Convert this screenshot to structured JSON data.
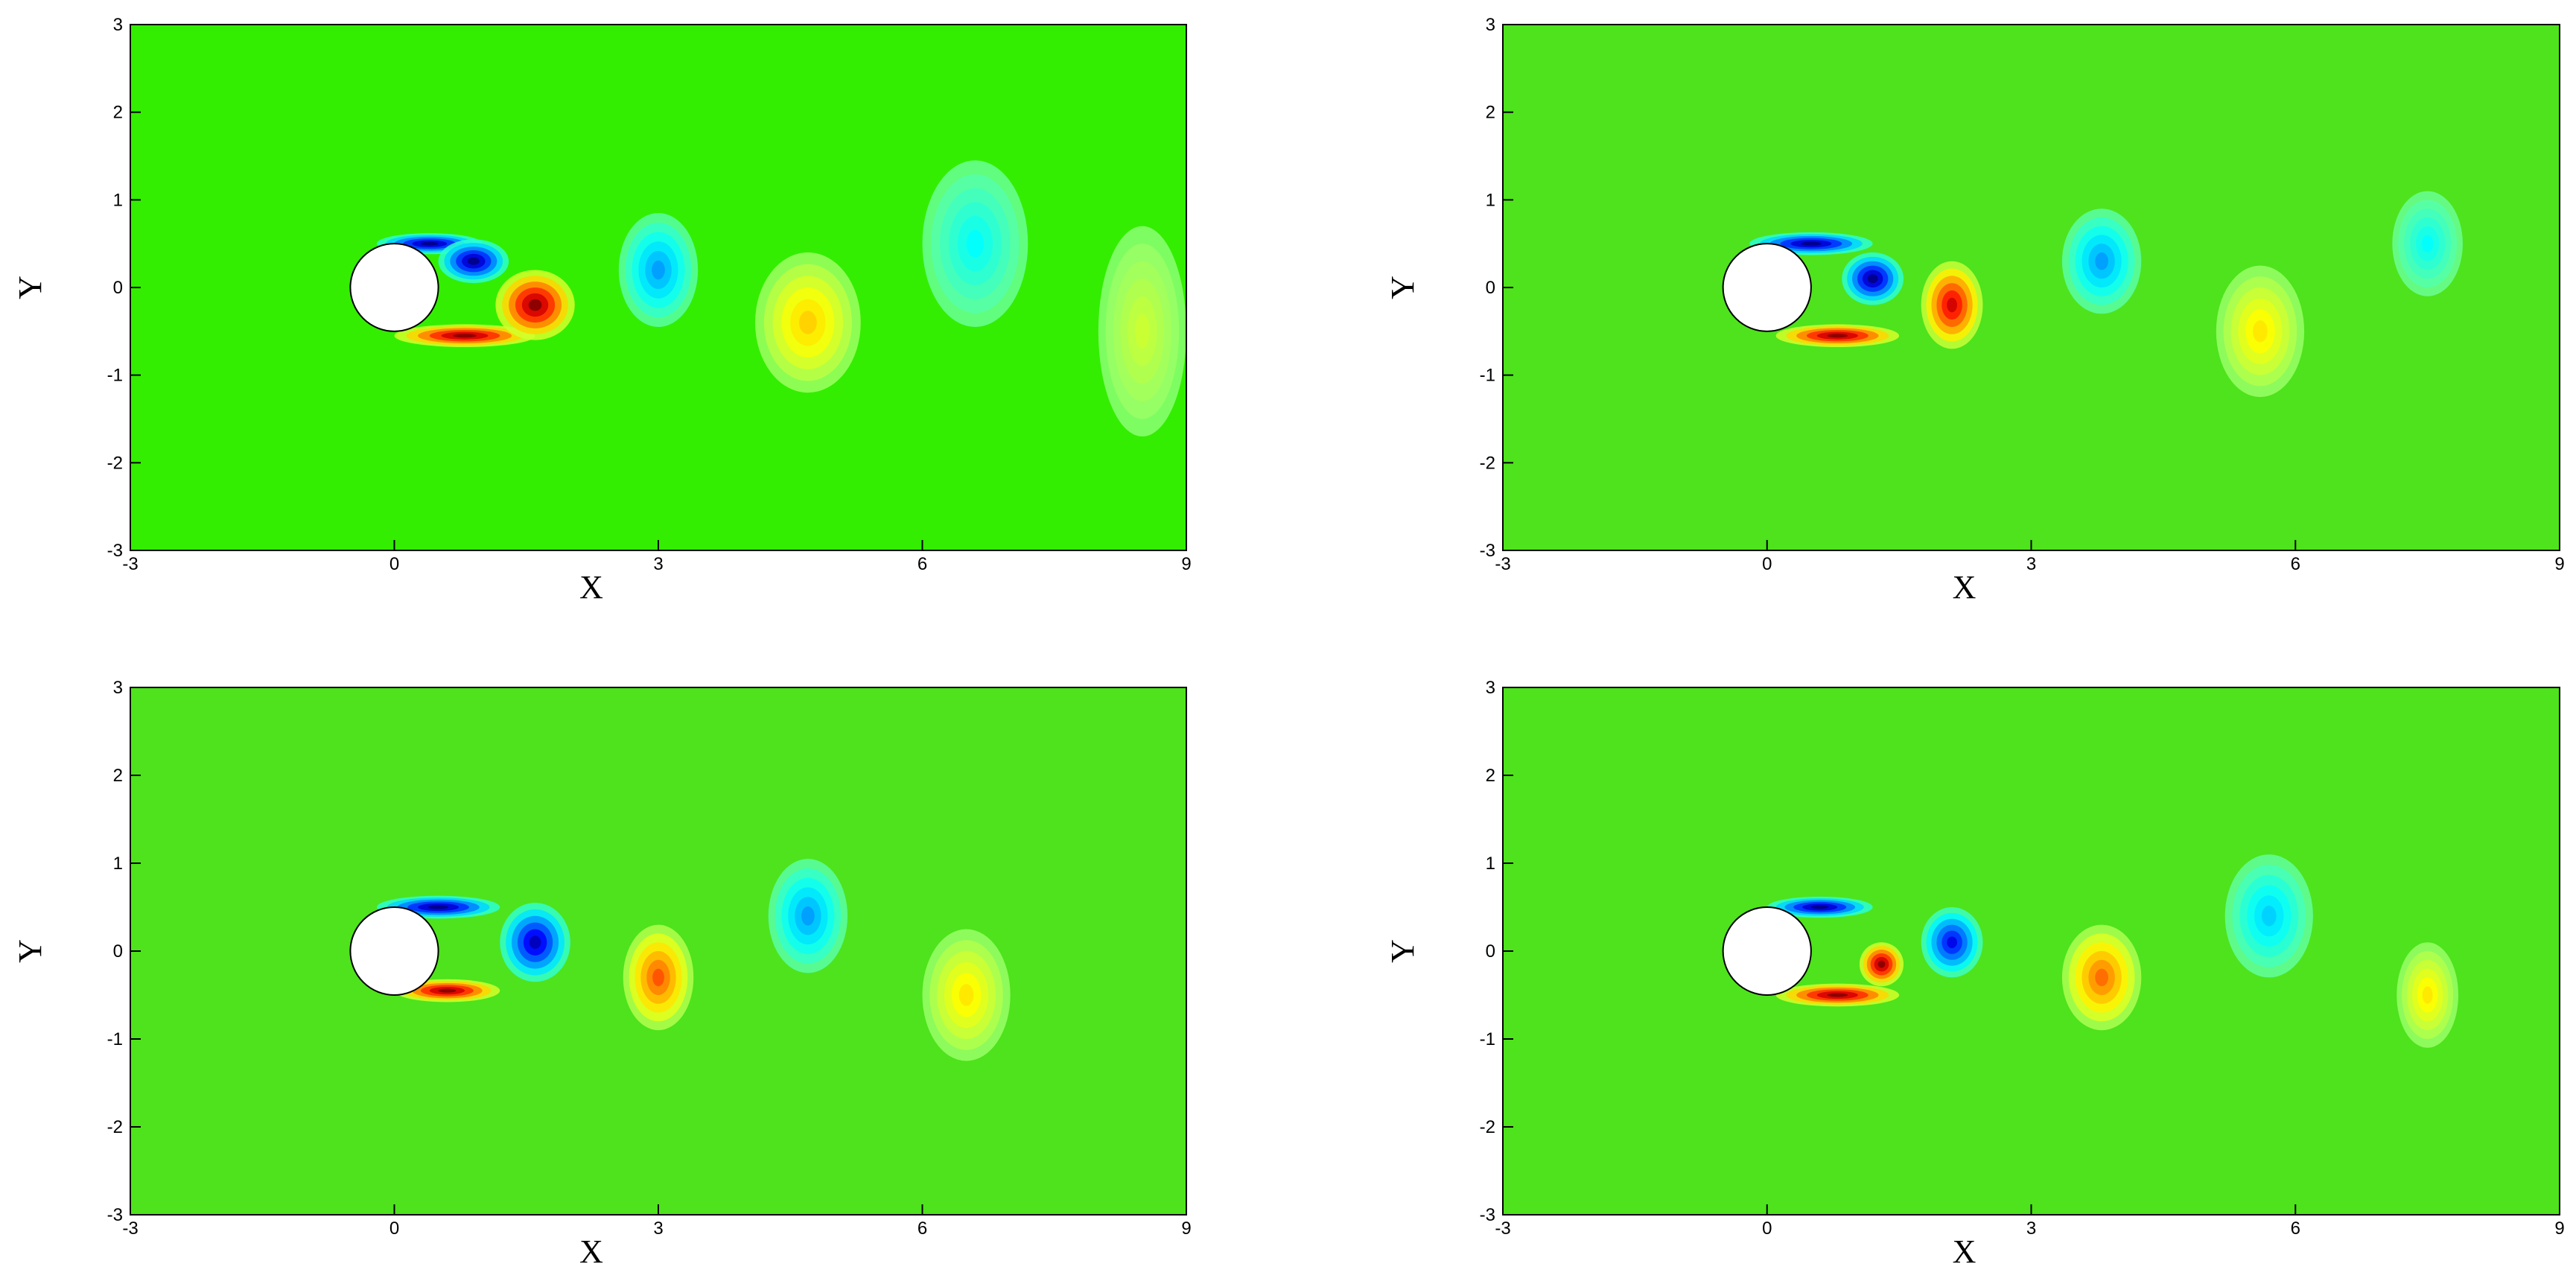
{
  "chart_data": [
    {
      "type": "contour",
      "xlabel": "X",
      "ylabel": "Y",
      "xlim": [
        -3,
        9
      ],
      "ylim": [
        -3,
        3
      ],
      "xticks": [
        -3,
        0,
        3,
        6,
        9
      ],
      "yticks": [
        -3,
        -2,
        -1,
        0,
        1,
        2,
        3
      ],
      "background": "#33ee00",
      "cylinder": {
        "x": 0,
        "y": 0,
        "radius": 0.5
      },
      "vortices": [
        {
          "x": 0.4,
          "y": 0.5,
          "rx": 0.6,
          "ry": 0.12,
          "strength": -1
        },
        {
          "x": 0.9,
          "y": 0.3,
          "rx": 0.4,
          "ry": 0.25,
          "strength": -1
        },
        {
          "x": 0.8,
          "y": -0.55,
          "rx": 0.8,
          "ry": 0.13,
          "strength": 1
        },
        {
          "x": 1.6,
          "y": -0.2,
          "rx": 0.45,
          "ry": 0.4,
          "strength": 1
        },
        {
          "x": 3,
          "y": 0.2,
          "rx": 0.45,
          "ry": 0.65,
          "strength": -0.45
        },
        {
          "x": 4.7,
          "y": -0.4,
          "rx": 0.6,
          "ry": 0.8,
          "strength": 0.35
        },
        {
          "x": 6.6,
          "y": 0.5,
          "rx": 0.6,
          "ry": 0.95,
          "strength": -0.25
        },
        {
          "x": 8.5,
          "y": -0.5,
          "rx": 0.5,
          "ry": 1.2,
          "strength": 0.15
        }
      ]
    },
    {
      "type": "contour",
      "xlabel": "X",
      "ylabel": "Y",
      "xlim": [
        -3,
        9
      ],
      "ylim": [
        -3,
        3
      ],
      "xticks": [
        -3,
        0,
        3,
        6,
        9
      ],
      "yticks": [
        -3,
        -2,
        -1,
        0,
        1,
        2,
        3
      ],
      "background": "#4ee31c",
      "cylinder": {
        "x": 0,
        "y": 0,
        "radius": 0.5
      },
      "vortices": [
        {
          "x": 0.5,
          "y": 0.5,
          "rx": 0.7,
          "ry": 0.13,
          "strength": -1
        },
        {
          "x": 1.2,
          "y": 0.1,
          "rx": 0.35,
          "ry": 0.3,
          "strength": -1
        },
        {
          "x": 0.8,
          "y": -0.55,
          "rx": 0.7,
          "ry": 0.13,
          "strength": 1
        },
        {
          "x": 2.1,
          "y": -0.2,
          "rx": 0.35,
          "ry": 0.5,
          "strength": 0.85
        },
        {
          "x": 3.8,
          "y": 0.3,
          "rx": 0.45,
          "ry": 0.6,
          "strength": -0.45
        },
        {
          "x": 5.6,
          "y": -0.5,
          "rx": 0.5,
          "ry": 0.75,
          "strength": 0.3
        },
        {
          "x": 7.5,
          "y": 0.5,
          "rx": 0.4,
          "ry": 0.6,
          "strength": -0.25
        }
      ]
    },
    {
      "type": "contour",
      "xlabel": "X",
      "ylabel": "Y",
      "xlim": [
        -3,
        9
      ],
      "ylim": [
        -3,
        3
      ],
      "xticks": [
        -3,
        0,
        3,
        6,
        9
      ],
      "yticks": [
        -3,
        -2,
        -1,
        0,
        1,
        2,
        3
      ],
      "background": "#4ee31c",
      "cylinder": {
        "x": 0,
        "y": 0,
        "radius": 0.5
      },
      "vortices": [
        {
          "x": 0.5,
          "y": 0.5,
          "rx": 0.7,
          "ry": 0.13,
          "strength": -1
        },
        {
          "x": 1.6,
          "y": 0.1,
          "rx": 0.4,
          "ry": 0.45,
          "strength": -0.9
        },
        {
          "x": 0.6,
          "y": -0.45,
          "rx": 0.6,
          "ry": 0.13,
          "strength": 1
        },
        {
          "x": 3,
          "y": -0.3,
          "rx": 0.4,
          "ry": 0.6,
          "strength": 0.6
        },
        {
          "x": 4.7,
          "y": 0.4,
          "rx": 0.45,
          "ry": 0.65,
          "strength": -0.45
        },
        {
          "x": 6.5,
          "y": -0.5,
          "rx": 0.5,
          "ry": 0.75,
          "strength": 0.3
        }
      ]
    },
    {
      "type": "contour",
      "xlabel": "X",
      "ylabel": "Y",
      "xlim": [
        -3,
        9
      ],
      "ylim": [
        -3,
        3
      ],
      "xticks": [
        -3,
        0,
        3,
        6,
        9
      ],
      "yticks": [
        -3,
        -2,
        -1,
        0,
        1,
        2,
        3
      ],
      "background": "#4ee31c",
      "cylinder": {
        "x": 0,
        "y": 0,
        "radius": 0.5
      },
      "vortices": [
        {
          "x": 0.6,
          "y": 0.5,
          "rx": 0.6,
          "ry": 0.12,
          "strength": -1
        },
        {
          "x": 2.1,
          "y": 0.1,
          "rx": 0.35,
          "ry": 0.4,
          "strength": -0.8
        },
        {
          "x": 0.8,
          "y": -0.5,
          "rx": 0.7,
          "ry": 0.13,
          "strength": 1
        },
        {
          "x": 1.3,
          "y": -0.15,
          "rx": 0.25,
          "ry": 0.25,
          "strength": 1
        },
        {
          "x": 3.8,
          "y": -0.3,
          "rx": 0.45,
          "ry": 0.6,
          "strength": 0.55
        },
        {
          "x": 5.7,
          "y": 0.4,
          "rx": 0.5,
          "ry": 0.7,
          "strength": -0.35
        },
        {
          "x": 7.5,
          "y": -0.5,
          "rx": 0.35,
          "ry": 0.6,
          "strength": 0.3
        }
      ]
    }
  ]
}
